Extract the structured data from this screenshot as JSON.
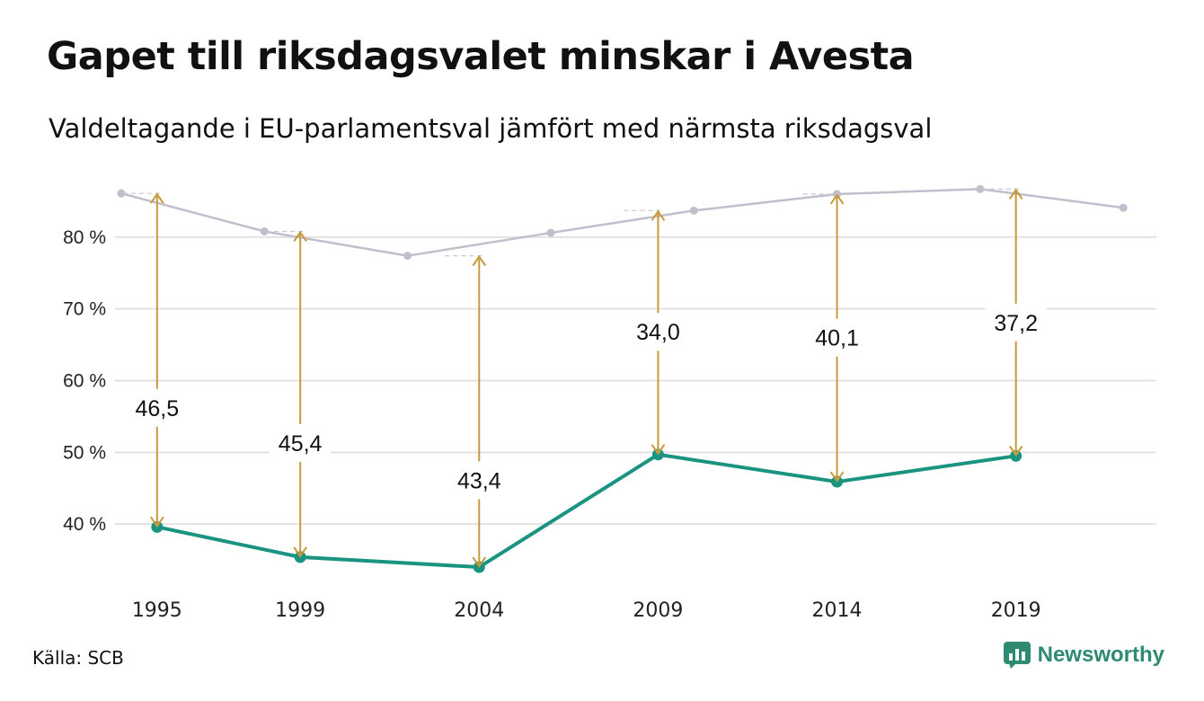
{
  "header": {
    "title": "Gapet till riksdagsvalet minskar i Avesta",
    "subtitle": "Valdeltagande i EU-parlamentsval jämfört med närmsta riksdagsval"
  },
  "footer": {
    "source": "Källa: SCB",
    "brand": "Newsworthy"
  },
  "colors": {
    "eu_line": "#1a9481",
    "riksdag_line": "#c2bfcc",
    "arrow": "#c99a3c",
    "grid": "#e2e2e2",
    "brand": "#2e8b72"
  },
  "chart_data": {
    "type": "line",
    "title": "Gapet till riksdagsvalet minskar i Avesta",
    "subtitle": "Valdeltagande i EU-parlamentsval jämfört med närmsta riksdagsval",
    "xlabel": "",
    "ylabel": "",
    "ylim": [
      31,
      88
    ],
    "xlim": [
      1994,
      2023
    ],
    "yticks": [
      40,
      50,
      60,
      70,
      80
    ],
    "ytick_labels": [
      "40 %",
      "50 %",
      "60 %",
      "70 %",
      "80 %"
    ],
    "xticks": [
      1995,
      1999,
      2004,
      2009,
      2014,
      2019
    ],
    "grid": true,
    "legend": "none",
    "series": [
      {
        "key": "eu",
        "x": [
          1995,
          1999,
          2004,
          2009,
          2014,
          2019
        ],
        "values": [
          39.6,
          35.4,
          34.0,
          49.7,
          45.9,
          49.5
        ]
      },
      {
        "key": "riksdag",
        "x": [
          1994,
          1998,
          2002,
          2006,
          2010,
          2014,
          2018,
          2022
        ],
        "values": [
          86.1,
          80.8,
          77.4,
          80.6,
          83.7,
          86.0,
          86.7,
          84.1
        ]
      }
    ],
    "gaps": [
      {
        "year": 1995,
        "eu": 39.6,
        "riksdag": 86.1,
        "label": "46,5",
        "label_value": 56.2
      },
      {
        "year": 1999,
        "eu": 35.4,
        "riksdag": 80.8,
        "label": "45,4",
        "label_value": 51.3
      },
      {
        "year": 2004,
        "eu": 34.0,
        "riksdag": 77.4,
        "label": "43,4",
        "label_value": 46.1
      },
      {
        "year": 2009,
        "eu": 49.7,
        "riksdag": 83.7,
        "label": "34,0",
        "label_value": 66.8
      },
      {
        "year": 2014,
        "eu": 45.9,
        "riksdag": 86.0,
        "label": "40,1",
        "label_value": 66.0
      },
      {
        "year": 2019,
        "eu": 49.5,
        "riksdag": 86.7,
        "label": "37,2",
        "label_value": 68.1
      }
    ]
  }
}
